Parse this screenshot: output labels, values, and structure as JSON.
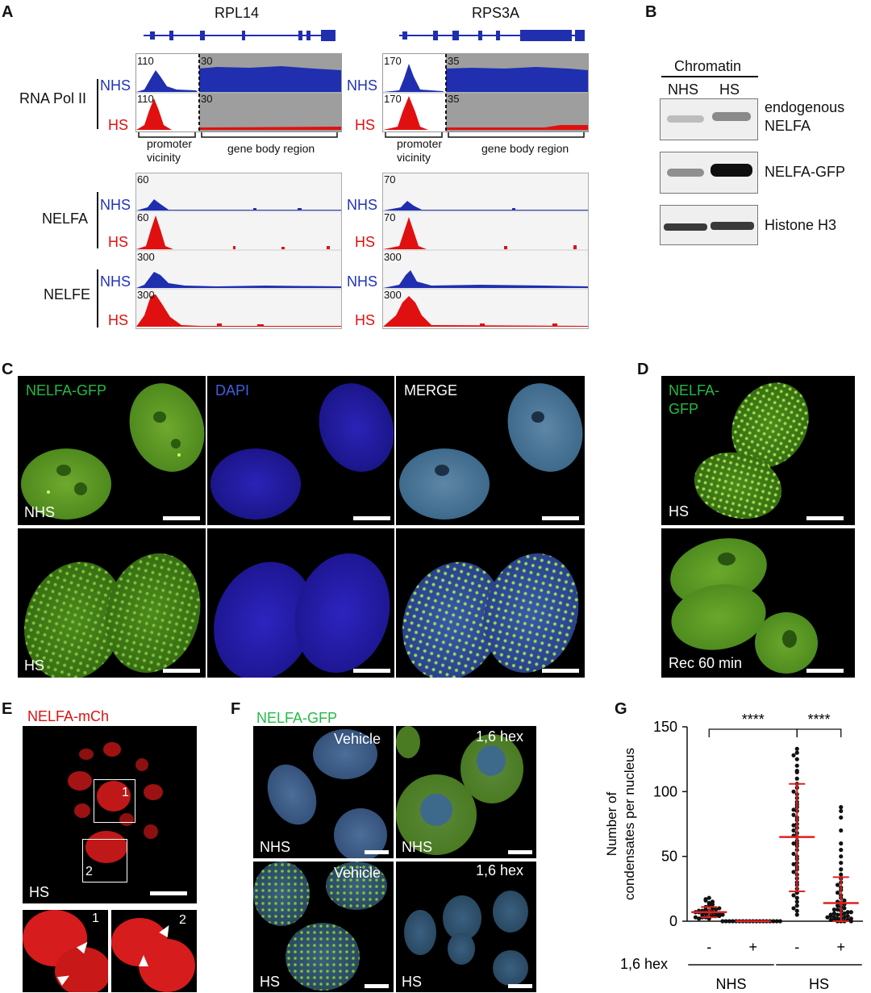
{
  "panels": {
    "A": {
      "label": "A",
      "genes": [
        "RPL14",
        "RPS3A"
      ],
      "groups": [
        {
          "name": "RNA Pol II",
          "scales": {
            "RPL14": [
              "110",
              "30"
            ],
            "RPS3A": [
              "170",
              "35"
            ]
          }
        },
        {
          "name": "NELFA",
          "scales": {
            "RPL14": [
              "60"
            ],
            "RPS3A": [
              "70"
            ]
          }
        },
        {
          "name": "NELFE",
          "scales": {
            "RPL14": [
              "300"
            ],
            "RPS3A": [
              "300"
            ]
          }
        }
      ],
      "conditions": [
        "NHS",
        "HS"
      ],
      "region_promoter": "promoter vicinity",
      "region_promoter_l1": "promoter",
      "region_promoter_l2": "vicinity",
      "region_body": "gene body region",
      "colors": {
        "NHS": "#1f2fb0",
        "HS": "#e01010"
      }
    },
    "B": {
      "label": "B",
      "fraction": "Chromatin",
      "lanes": [
        "NHS",
        "HS"
      ],
      "bands": [
        {
          "name": "endogenous NELFA",
          "l1": "endogenous",
          "l2": "NELFA",
          "intensity": [
            0.25,
            0.5
          ]
        },
        {
          "name": "NELFA-GFP",
          "intensity": [
            0.45,
            0.95
          ]
        },
        {
          "name": "Histone H3",
          "intensity": [
            0.75,
            0.75
          ]
        }
      ]
    },
    "C": {
      "label": "C",
      "channels": [
        "NELFA-GFP",
        "DAPI",
        "MERGE"
      ],
      "rows": [
        "NHS",
        "HS"
      ]
    },
    "D": {
      "label": "D",
      "channel_l1": "NELFA-",
      "channel_l2": "GFP",
      "rows": [
        "HS",
        "Rec 60 min"
      ]
    },
    "E": {
      "label": "E",
      "channel": "NELFA-mCh",
      "condition": "HS",
      "box1": "1",
      "box2": "2"
    },
    "F": {
      "label": "F",
      "channel": "NELFA-GFP",
      "treatments": [
        "Vehicle",
        "1,6 hex"
      ],
      "conditions": [
        "NHS",
        "HS"
      ]
    },
    "G": {
      "label": "G",
      "significance": [
        "****",
        "****"
      ],
      "treatment_label": "1,6 hex",
      "treatment_signs": [
        "-",
        "+",
        "-",
        "+"
      ],
      "groups": [
        "NHS",
        "HS"
      ]
    }
  },
  "chart_data": {
    "type": "scatter",
    "title": "",
    "ylabel_l1": "Number of",
    "ylabel_l2": "condensates per nucleus",
    "ylim": [
      0,
      150
    ],
    "yticks": [
      "0",
      "50",
      "100",
      "150"
    ],
    "categories": [
      "NHS -",
      "NHS +",
      "HS -",
      "HS +"
    ],
    "series": [
      {
        "mean": 7,
        "sd_low": 3,
        "sd_high": 11,
        "values": [
          2,
          3,
          4,
          5,
          6,
          7,
          8,
          9,
          10,
          12,
          14,
          16,
          18,
          5,
          6,
          7,
          8,
          3,
          4,
          9,
          11,
          13,
          2,
          6,
          7,
          8,
          10,
          15,
          17,
          5,
          4,
          3
        ]
      },
      {
        "mean": 0,
        "sd_low": 0,
        "sd_high": 0,
        "values": [
          0,
          0,
          0,
          0,
          0,
          0,
          0,
          0,
          0,
          0,
          0,
          0,
          0,
          0,
          0,
          0,
          0,
          0
        ]
      },
      {
        "mean": 65,
        "sd_low": 23,
        "sd_high": 106,
        "values": [
          5,
          8,
          12,
          15,
          18,
          22,
          25,
          28,
          30,
          33,
          36,
          40,
          42,
          45,
          48,
          50,
          52,
          55,
          58,
          60,
          62,
          65,
          68,
          70,
          72,
          75,
          78,
          80,
          82,
          85,
          88,
          90,
          92,
          95,
          98,
          100,
          103,
          106,
          110,
          115,
          120,
          125,
          130,
          133,
          60,
          66,
          44,
          38,
          20,
          10,
          116,
          128,
          74,
          86
        ]
      },
      {
        "mean": 14,
        "sd_low": 0,
        "sd_high": 34,
        "values": [
          0,
          0,
          0,
          1,
          1,
          2,
          2,
          3,
          3,
          4,
          4,
          5,
          5,
          6,
          6,
          7,
          8,
          9,
          10,
          11,
          12,
          13,
          14,
          15,
          16,
          18,
          20,
          22,
          24,
          26,
          28,
          30,
          33,
          36,
          40,
          45,
          50,
          55,
          60,
          70,
          80,
          85,
          88,
          2,
          3,
          5,
          7,
          9,
          1,
          0
        ]
      }
    ]
  }
}
